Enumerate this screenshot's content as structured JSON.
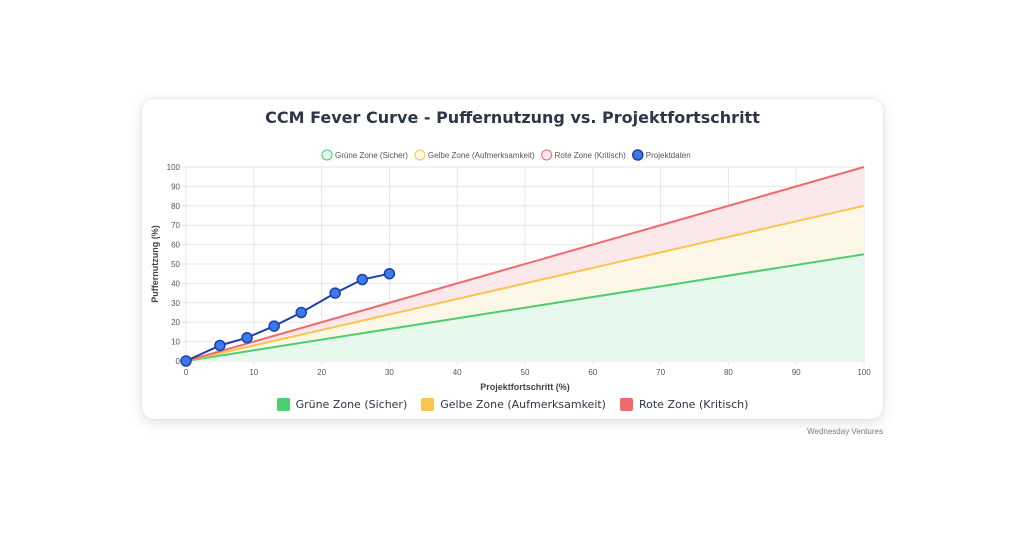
{
  "watermark": "Wednesday Ventures",
  "chart_data": {
    "type": "line",
    "title": "CCM Fever Curve - Puffernutzung vs. Projektfortschritt",
    "xlabel": "Projektfortschritt (%)",
    "ylabel": "Puffernutzung (%)",
    "xlim": [
      0,
      100
    ],
    "ylim": [
      0,
      100
    ],
    "xticks": [
      0,
      10,
      20,
      30,
      40,
      50,
      60,
      70,
      80,
      90,
      100
    ],
    "yticks": [
      0,
      10,
      20,
      30,
      40,
      50,
      60,
      70,
      80,
      90,
      100
    ],
    "grid": true,
    "legend_position": "top",
    "series": [
      {
        "name": "Grüne Zone (Sicher)",
        "kind": "zone",
        "color": "#4cce6f",
        "fill": "#e7f8ec",
        "x": [
          0,
          100
        ],
        "y": [
          0,
          55
        ]
      },
      {
        "name": "Gelbe Zone (Aufmerksamkeit)",
        "kind": "zone",
        "color": "#f8c54e",
        "fill": "#fdf7e8",
        "x": [
          0,
          100
        ],
        "y": [
          0,
          80
        ]
      },
      {
        "name": "Rote Zone (Kritisch)",
        "kind": "zone",
        "color": "#ef6b6b",
        "fill": "#fbe8ea",
        "x": [
          0,
          100
        ],
        "y": [
          0,
          100
        ]
      },
      {
        "name": "Projektdaten",
        "kind": "data",
        "color": "#1e40af",
        "point_fill": "#3b7be8",
        "x": [
          0,
          5,
          9,
          13,
          17,
          22,
          26,
          30
        ],
        "y": [
          0,
          8,
          12,
          18,
          25,
          35,
          42,
          45
        ]
      }
    ],
    "bottom_legend": [
      {
        "label": "Grüne Zone (Sicher)",
        "color": "#4cce6f"
      },
      {
        "label": "Gelbe Zone (Aufmerksamkeit)",
        "color": "#f8c54e"
      },
      {
        "label": "Rote Zone (Kritisch)",
        "color": "#ef6b6b"
      }
    ]
  }
}
